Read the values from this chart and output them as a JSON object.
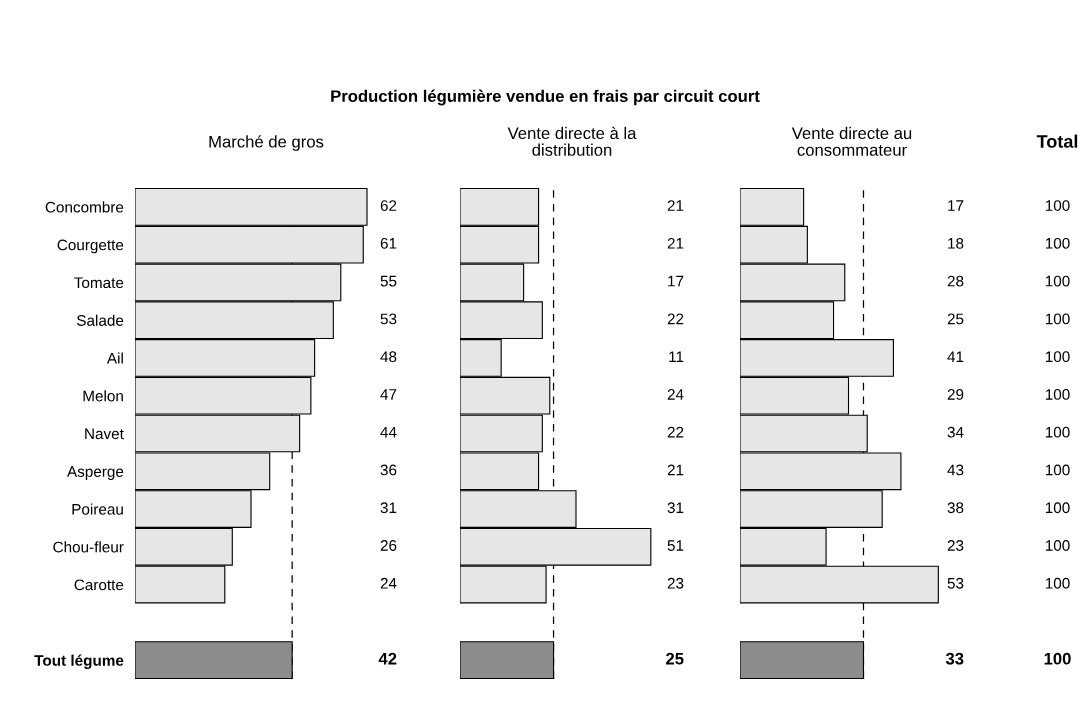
{
  "chart_data": [
    {
      "type": "other",
      "title": "Production légumière vendue en frais par circuit court"
    },
    {
      "type": "bar",
      "orientation": "horizontal",
      "subtitle": "Marché de gros",
      "categories": [
        "Concombre",
        "Courgette",
        "Tomate",
        "Salade",
        "Ail",
        "Melon",
        "Navet",
        "Asperge",
        "Poireau",
        "Chou-fleur",
        "Carotte",
        null,
        "Tout légume"
      ],
      "values": [
        62,
        61,
        55,
        53,
        48,
        47,
        44,
        36,
        31,
        26,
        24,
        null,
        42
      ],
      "colors": [
        "#e6e6e6",
        "#e6e6e6",
        "#e6e6e6",
        "#e6e6e6",
        "#e6e6e6",
        "#e6e6e6",
        "#e6e6e6",
        "#e6e6e6",
        "#e6e6e6",
        "#e6e6e6",
        "#e6e6e6",
        "#e6e6e6",
        "#8c8c8c"
      ],
      "tick_labels": "y",
      "data_labels": true,
      "ref_lines": [
        {
          "axis": "x",
          "value": 42,
          "line_style": "dashed",
          "color": "#000000"
        }
      ]
    },
    {
      "type": "bar",
      "orientation": "horizontal",
      "subtitle": "Vente directe à la\ndistribution",
      "values": [
        21,
        21,
        17,
        22,
        11,
        24,
        22,
        21,
        31,
        51,
        23,
        null,
        25
      ],
      "colors": [
        "#e6e6e6",
        "#e6e6e6",
        "#e6e6e6",
        "#e6e6e6",
        "#e6e6e6",
        "#e6e6e6",
        "#e6e6e6",
        "#e6e6e6",
        "#e6e6e6",
        "#e6e6e6",
        "#e6e6e6",
        "#e6e6e6",
        "#8c8c8c"
      ],
      "data_labels": true,
      "ref_lines": [
        {
          "axis": "x",
          "value": 25,
          "line_style": "dashed",
          "color": "#000000"
        }
      ]
    },
    {
      "type": "bar",
      "orientation": "horizontal",
      "subtitle": "Vente directe au\nconsommateur",
      "values": [
        17,
        18,
        28,
        25,
        41,
        29,
        34,
        43,
        38,
        23,
        53,
        null,
        33
      ],
      "colors": [
        "#e6e6e6",
        "#e6e6e6",
        "#e6e6e6",
        "#e6e6e6",
        "#e6e6e6",
        "#e6e6e6",
        "#e6e6e6",
        "#e6e6e6",
        "#e6e6e6",
        "#e6e6e6",
        "#e6e6e6",
        "#e6e6e6",
        "#8c8c8c"
      ],
      "data_labels": true,
      "ref_lines": [
        {
          "axis": "x",
          "value": 33,
          "line_style": "dashed",
          "color": "#000000"
        }
      ]
    },
    {
      "type": "other",
      "subtitle": "Total",
      "values": [
        100,
        100,
        100,
        100,
        100,
        100,
        100,
        100,
        100,
        100,
        100,
        null,
        100
      ],
      "data_labels": true
    }
  ]
}
